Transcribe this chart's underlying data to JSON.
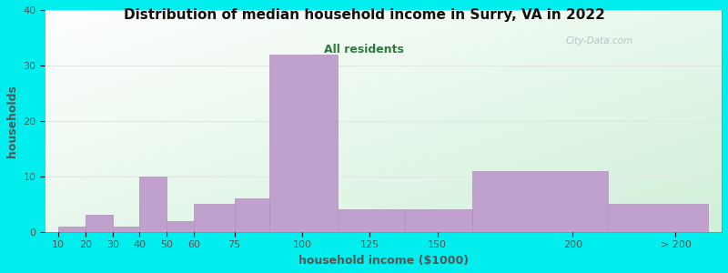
{
  "title": "Distribution of median household income in Surry, VA in 2022",
  "subtitle": "All residents",
  "xlabel": "household income ($1000)",
  "ylabel": "households",
  "bg_outer": "#00EEEE",
  "bar_color": "#c0a0cc",
  "bar_edge_color": "#b090bb",
  "title_color": "#111111",
  "subtitle_color": "#2d7a3a",
  "axis_label_color": "#555555",
  "tick_label_color": "#555555",
  "values": [
    1,
    3,
    1,
    10,
    2,
    5,
    6,
    32,
    4,
    4,
    11,
    5
  ],
  "bar_left_edges": [
    10,
    20,
    30,
    40,
    50,
    60,
    75,
    88,
    113,
    138,
    163,
    213
  ],
  "bar_widths": [
    10,
    10,
    10,
    10,
    10,
    15,
    13,
    25,
    25,
    25,
    50,
    37
  ],
  "xtick_positions": [
    10,
    20,
    30,
    40,
    50,
    60,
    75,
    100,
    125,
    150,
    200
  ],
  "xtick_labels": [
    "10",
    "20",
    "30",
    "40",
    "50",
    "60",
    "75",
    "100",
    "125",
    "150",
    "200"
  ],
  "xtick_gt200_pos": 238,
  "xtick_gt200_label": "> 200",
  "ylim": [
    0,
    40
  ],
  "xlim_left": 5,
  "xlim_right": 255,
  "yticks": [
    0,
    10,
    20,
    30,
    40
  ],
  "watermark": "City-Data.com",
  "gradient_colors": [
    "#d0f0d8",
    "#ffffff"
  ],
  "grid_color": "#e0e8e0",
  "title_fontsize": 11,
  "subtitle_fontsize": 9,
  "label_fontsize": 9,
  "tick_fontsize": 8
}
